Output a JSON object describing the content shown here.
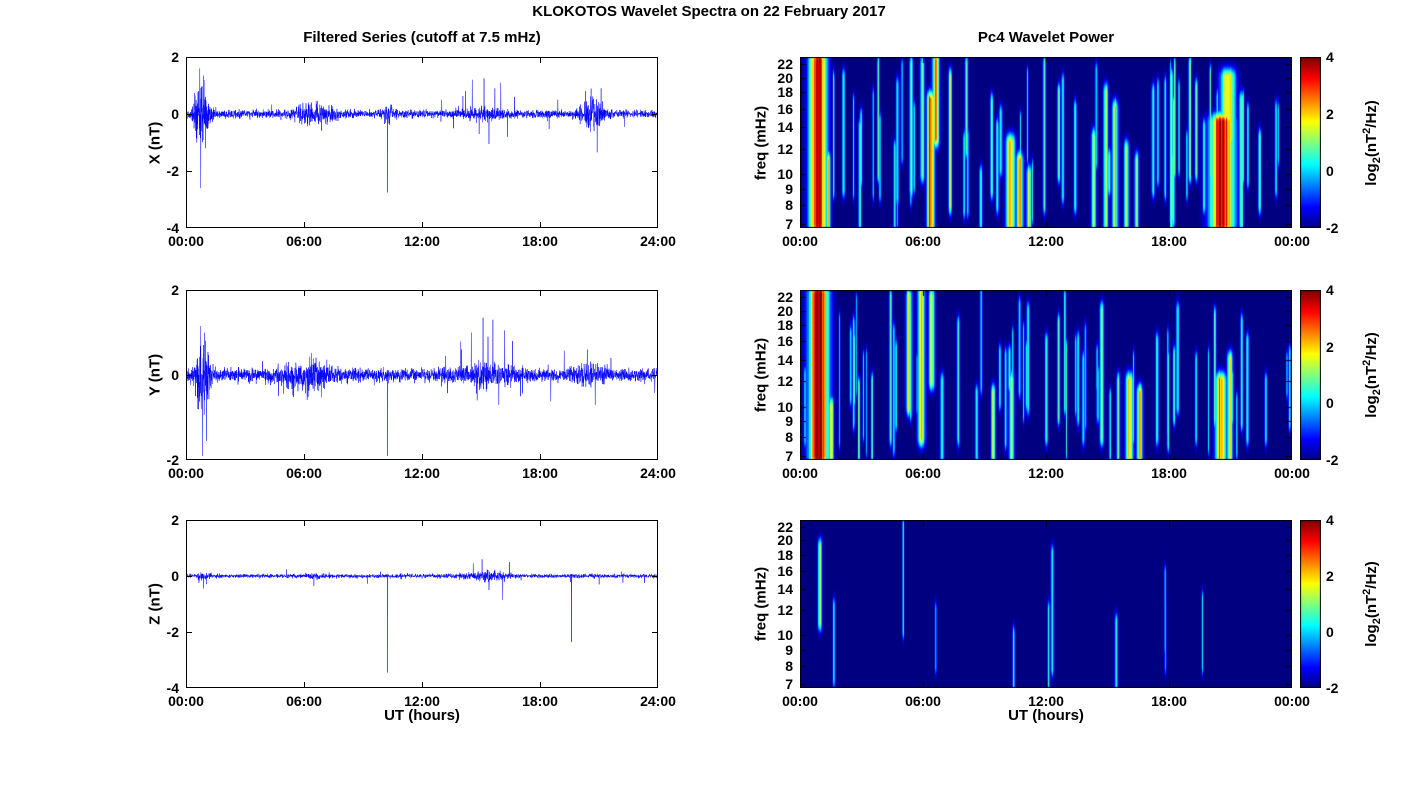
{
  "figure": {
    "title": "KLOKOTOS Wavelet Spectra on 22 February 2017",
    "left_column_title": "Filtered Series (cutoff at 7.5 mHz)",
    "right_column_title": "Pc4 Wavelet Power",
    "x_axis_label": "UT (hours)",
    "background": "#ffffff",
    "colorbar_label": {
      "pre": "log",
      "sub": "2",
      "mid": "(nT",
      "sup": "2",
      "post": "/Hz)"
    }
  },
  "chart_data": [
    {
      "type": "line",
      "id": "x-filtered-series",
      "row": 0,
      "ylabel": "X (nT)",
      "ylim": [
        -4,
        2
      ],
      "ytick_values": [
        2,
        0,
        -2,
        -4
      ],
      "xlim_hours": [
        0,
        24
      ],
      "xtick_hours": [
        0,
        6,
        12,
        18,
        24
      ],
      "xtick_labels": [
        "00:00",
        "06:00",
        "12:00",
        "18:00",
        "24:00"
      ],
      "line_color": "#0000ff",
      "noise_std_nT": 0.065,
      "seed": 11,
      "bursts": [
        {
          "t": 0.8,
          "d": 0.28,
          "a": 0.55
        },
        {
          "t": 2.0,
          "d": 1.2,
          "a": 0.04
        },
        {
          "t": 6.6,
          "d": 0.8,
          "a": 0.22
        },
        {
          "t": 10.3,
          "d": 0.25,
          "a": 0.15
        },
        {
          "t": 15.0,
          "d": 1.1,
          "a": 0.1
        },
        {
          "t": 20.7,
          "d": 0.45,
          "a": 0.33
        }
      ],
      "spikes": [
        [
          0.55,
          -1.0
        ],
        [
          0.7,
          1.6
        ],
        [
          0.75,
          -2.6
        ],
        [
          0.9,
          1.35
        ],
        [
          1.0,
          -1.2
        ],
        [
          10.25,
          -2.75
        ],
        [
          13.0,
          0.5
        ],
        [
          13.6,
          -0.5
        ],
        [
          14.2,
          0.8
        ],
        [
          14.55,
          1.2
        ],
        [
          14.9,
          -0.7
        ],
        [
          15.15,
          1.25
        ],
        [
          15.4,
          -1.05
        ],
        [
          15.7,
          0.9
        ],
        [
          16.0,
          1.1
        ],
        [
          16.35,
          -0.8
        ],
        [
          16.7,
          0.6
        ],
        [
          18.9,
          0.5
        ],
        [
          20.3,
          0.8
        ],
        [
          20.9,
          -1.35
        ],
        [
          21.1,
          0.9
        ],
        [
          22.3,
          -0.45
        ]
      ]
    },
    {
      "type": "line",
      "id": "y-filtered-series",
      "row": 1,
      "ylabel": "Y (nT)",
      "ylim": [
        -2,
        2
      ],
      "ytick_values": [
        2,
        0,
        -2
      ],
      "xlim_hours": [
        0,
        24
      ],
      "xtick_hours": [
        0,
        6,
        12,
        18,
        24
      ],
      "xtick_labels": [
        "00:00",
        "06:00",
        "12:00",
        "18:00",
        "24:00"
      ],
      "line_color": "#0000ff",
      "noise_std_nT": 0.075,
      "seed": 12,
      "bursts": [
        {
          "t": 0.85,
          "d": 0.3,
          "a": 0.42
        },
        {
          "t": 5.0,
          "d": 0.5,
          "a": 0.1
        },
        {
          "t": 6.2,
          "d": 1.0,
          "a": 0.2
        },
        {
          "t": 15.2,
          "d": 1.2,
          "a": 0.13
        },
        {
          "t": 20.6,
          "d": 0.5,
          "a": 0.16
        }
      ],
      "spikes": [
        [
          0.6,
          -0.8
        ],
        [
          0.75,
          1.15
        ],
        [
          0.85,
          -1.9
        ],
        [
          0.95,
          1.0
        ],
        [
          1.05,
          -1.55
        ],
        [
          10.25,
          -1.9
        ],
        [
          13.2,
          0.45
        ],
        [
          14.0,
          0.6
        ],
        [
          14.5,
          1.0
        ],
        [
          14.8,
          -0.6
        ],
        [
          15.1,
          1.35
        ],
        [
          15.35,
          0.9
        ],
        [
          15.6,
          1.3
        ],
        [
          15.9,
          -0.7
        ],
        [
          16.2,
          1.05
        ],
        [
          16.6,
          0.8
        ],
        [
          17.0,
          -0.5
        ],
        [
          20.4,
          0.6
        ],
        [
          20.8,
          -0.7
        ],
        [
          21.6,
          0.4
        ]
      ]
    },
    {
      "type": "line",
      "id": "z-filtered-series",
      "row": 2,
      "ylabel": "Z (nT)",
      "ylim": [
        -4,
        2
      ],
      "ytick_values": [
        2,
        0,
        -2,
        -4
      ],
      "xlim_hours": [
        0,
        24
      ],
      "xtick_hours": [
        0,
        6,
        12,
        18,
        24
      ],
      "xtick_labels": [
        "00:00",
        "06:00",
        "12:00",
        "18:00",
        "24:00"
      ],
      "line_color": "#0000ff",
      "noise_std_nT": 0.035,
      "seed": 13,
      "bursts": [
        {
          "t": 0.9,
          "d": 0.3,
          "a": 0.06
        },
        {
          "t": 6.5,
          "d": 0.5,
          "a": 0.04
        },
        {
          "t": 15.3,
          "d": 1.0,
          "a": 0.09
        }
      ],
      "spikes": [
        [
          0.9,
          -0.45
        ],
        [
          6.5,
          -0.35
        ],
        [
          10.25,
          -3.45
        ],
        [
          14.6,
          0.45
        ],
        [
          15.05,
          0.6
        ],
        [
          15.4,
          -0.5
        ],
        [
          16.1,
          -0.85
        ],
        [
          16.45,
          0.5
        ],
        [
          19.6,
          -2.35
        ],
        [
          21.0,
          -0.3
        ]
      ]
    },
    {
      "type": "heatmap",
      "id": "x-wavelet-power",
      "row": 0,
      "ylabel": "freq (mHz)",
      "freq_lim_mHz": [
        6.8,
        23.2
      ],
      "ytick_values": [
        22,
        20,
        18,
        16,
        14,
        12,
        10,
        9,
        8,
        7
      ],
      "xtick_hours": [
        0,
        6,
        12,
        18,
        24
      ],
      "xtick_labels": [
        "00:00",
        "06:00",
        "12:00",
        "18:00",
        "00:00"
      ],
      "clim": [
        -2,
        4
      ],
      "colorbar_ticks": [
        4,
        2,
        0,
        -2
      ],
      "background_power": -2,
      "seed": 21,
      "noise_streak_count": 40,
      "streaks": [
        [
          0.85,
          0.28,
          7,
          22.5,
          4
        ],
        [
          1.35,
          0.08,
          7,
          11,
          1.6
        ],
        [
          2.1,
          0.05,
          9,
          20,
          0.7
        ],
        [
          2.9,
          0.05,
          7,
          14,
          0.6
        ],
        [
          3.8,
          0.04,
          10,
          22,
          0.7
        ],
        [
          4.6,
          0.05,
          7,
          12,
          0.6
        ],
        [
          5.4,
          0.06,
          9,
          22,
          0.9
        ],
        [
          5.95,
          0.07,
          10,
          22,
          1.2
        ],
        [
          6.35,
          0.12,
          7,
          17,
          3.4
        ],
        [
          6.6,
          0.12,
          13,
          22.5,
          2.2
        ],
        [
          7.3,
          0.06,
          8,
          20,
          1.1
        ],
        [
          8.1,
          0.05,
          12,
          22,
          0.8
        ],
        [
          8.8,
          0.05,
          7,
          10,
          0.6
        ],
        [
          9.6,
          0.05,
          8,
          14,
          0.7
        ],
        [
          10.25,
          0.15,
          7,
          12.5,
          2.3
        ],
        [
          10.7,
          0.12,
          7,
          11,
          2.0
        ],
        [
          11.15,
          0.08,
          7,
          10,
          1.5
        ],
        [
          11.9,
          0.05,
          8,
          22,
          0.8
        ],
        [
          12.6,
          0.05,
          10,
          18,
          0.7
        ],
        [
          13.4,
          0.05,
          8,
          16,
          0.8
        ],
        [
          14.3,
          0.08,
          7,
          13,
          1.2
        ],
        [
          14.9,
          0.08,
          7,
          18,
          1.4
        ],
        [
          15.35,
          0.1,
          7,
          16,
          1.7
        ],
        [
          15.9,
          0.08,
          7,
          12,
          1.4
        ],
        [
          16.4,
          0.07,
          7,
          11,
          1.2
        ],
        [
          17.2,
          0.05,
          9,
          18,
          0.8
        ],
        [
          18.1,
          0.06,
          7,
          20,
          1.0
        ],
        [
          19.0,
          0.05,
          10,
          22,
          0.9
        ],
        [
          19.7,
          0.05,
          8,
          14,
          0.8
        ],
        [
          20.55,
          0.4,
          7,
          14.5,
          3.7
        ],
        [
          20.85,
          0.25,
          13,
          20,
          2.0
        ],
        [
          21.5,
          0.07,
          7,
          17,
          1.3
        ],
        [
          22.4,
          0.05,
          8,
          13,
          0.6
        ],
        [
          23.2,
          0.04,
          9,
          16,
          0.5
        ]
      ]
    },
    {
      "type": "heatmap",
      "id": "y-wavelet-power",
      "row": 1,
      "ylabel": "freq (mHz)",
      "freq_lim_mHz": [
        6.8,
        23.2
      ],
      "ytick_values": [
        22,
        20,
        18,
        16,
        14,
        12,
        10,
        9,
        8,
        7
      ],
      "xtick_hours": [
        0,
        6,
        12,
        18,
        24
      ],
      "xtick_labels": [
        "00:00",
        "06:00",
        "12:00",
        "18:00",
        "00:00"
      ],
      "clim": [
        -2,
        4
      ],
      "colorbar_ticks": [
        4,
        2,
        0,
        -2
      ],
      "background_power": -2,
      "seed": 22,
      "noise_streak_count": 40,
      "streaks": [
        [
          0.9,
          0.32,
          7,
          22.5,
          4
        ],
        [
          1.5,
          0.08,
          7,
          10,
          1.8
        ],
        [
          2.6,
          0.04,
          9,
          18,
          0.6
        ],
        [
          3.5,
          0.04,
          7,
          12,
          0.5
        ],
        [
          4.4,
          0.05,
          8,
          22,
          0.8
        ],
        [
          5.3,
          0.1,
          10,
          22,
          1.5
        ],
        [
          5.9,
          0.12,
          8,
          22.5,
          2.0
        ],
        [
          6.4,
          0.1,
          12,
          22,
          1.5
        ],
        [
          6.9,
          0.06,
          7,
          12,
          0.9
        ],
        [
          7.7,
          0.05,
          8,
          18,
          0.8
        ],
        [
          8.6,
          0.05,
          7,
          11,
          0.7
        ],
        [
          9.4,
          0.07,
          7,
          11,
          1.1
        ],
        [
          10.3,
          0.09,
          7,
          12,
          1.4
        ],
        [
          11.1,
          0.05,
          10,
          20,
          0.7
        ],
        [
          12.0,
          0.05,
          8,
          16,
          0.6
        ],
        [
          12.9,
          0.04,
          10,
          22,
          0.5
        ],
        [
          13.8,
          0.05,
          8,
          14,
          0.6
        ],
        [
          14.7,
          0.07,
          8,
          20,
          1.0
        ],
        [
          15.5,
          0.06,
          7,
          12,
          0.9
        ],
        [
          16.05,
          0.13,
          7,
          12,
          2.1
        ],
        [
          16.55,
          0.1,
          7,
          11,
          1.8
        ],
        [
          17.4,
          0.05,
          8,
          16,
          0.7
        ],
        [
          18.4,
          0.05,
          10,
          20,
          0.6
        ],
        [
          19.3,
          0.04,
          8,
          14,
          0.5
        ],
        [
          20.5,
          0.18,
          7,
          12,
          2.6
        ],
        [
          20.95,
          0.1,
          7,
          14,
          1.6
        ],
        [
          21.8,
          0.05,
          8,
          16,
          0.6
        ],
        [
          22.7,
          0.04,
          8,
          12,
          0.4
        ]
      ]
    },
    {
      "type": "heatmap",
      "id": "z-wavelet-power",
      "row": 2,
      "ylabel": "freq (mHz)",
      "freq_lim_mHz": [
        6.8,
        23.2
      ],
      "ytick_values": [
        22,
        20,
        18,
        16,
        14,
        12,
        10,
        9,
        8,
        7
      ],
      "xtick_hours": [
        0,
        6,
        12,
        18,
        24
      ],
      "xtick_labels": [
        "00:00",
        "06:00",
        "12:00",
        "18:00",
        "00:00"
      ],
      "clim": [
        -2,
        4
      ],
      "colorbar_ticks": [
        4,
        2,
        0,
        -2
      ],
      "background_power": -2,
      "seed": 23,
      "noise_streak_count": 4,
      "streaks": [
        [
          0.95,
          0.07,
          11,
          19,
          1.3
        ],
        [
          6.6,
          0.03,
          8,
          12,
          0.3
        ],
        [
          10.4,
          0.04,
          7,
          10,
          0.6
        ],
        [
          12.1,
          0.04,
          7,
          12,
          0.5
        ],
        [
          15.4,
          0.05,
          7,
          11,
          0.6
        ],
        [
          17.8,
          0.03,
          8,
          12,
          0.3
        ],
        [
          19.6,
          0.03,
          8,
          13,
          0.35
        ]
      ]
    }
  ]
}
